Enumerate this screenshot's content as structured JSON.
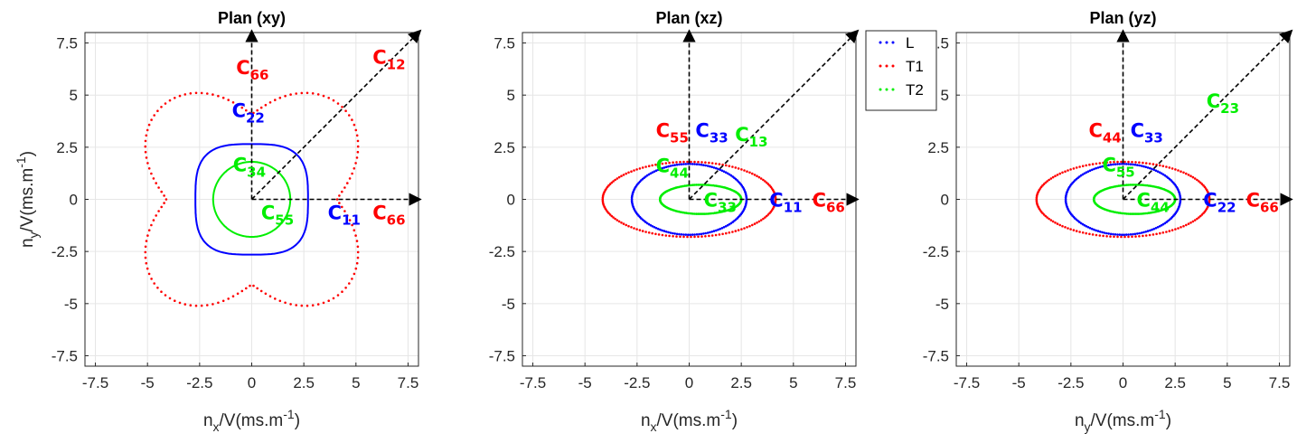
{
  "chart_data": [
    {
      "type": "scatter",
      "title": "Plan (xy)",
      "xlabel": {
        "base": "n",
        "sub": "x",
        "rest": "/V(ms.m",
        "sup": "-1",
        "end": ")"
      },
      "ylabel": {
        "base": "n",
        "sub": "y",
        "rest": "/V(ms.m",
        "sup": "-1",
        "end": ")"
      },
      "xlim": [
        -8,
        8
      ],
      "ylim": [
        -8,
        8
      ],
      "ticks": [
        -7.5,
        -5,
        -2.5,
        0,
        2.5,
        5,
        7.5
      ],
      "tick_labels": [
        "-7.5",
        "-5",
        "-2.5",
        "0",
        "2.5",
        "5",
        "7.5"
      ],
      "grid": true,
      "series": [
        {
          "name": "L",
          "color": "#0000ff",
          "style": "solid",
          "shape": {
            "kind": "superellipse",
            "a": 2.7,
            "b": 2.65,
            "p": 3.2
          }
        },
        {
          "name": "T1",
          "color": "#ff0000",
          "style": "dotted",
          "shape": {
            "kind": "lobed",
            "r": 5.0,
            "k": 0.95
          }
        },
        {
          "name": "T2",
          "color": "#00ee00",
          "style": "solid",
          "shape": {
            "kind": "ellipse",
            "a": 1.85,
            "b": 1.8,
            "cx": 0,
            "cy": 0
          }
        }
      ],
      "arrows": [
        {
          "from": [
            0,
            0
          ],
          "to": [
            8.1,
            0
          ]
        },
        {
          "from": [
            0,
            0
          ],
          "to": [
            0,
            8.1
          ]
        },
        {
          "from": [
            0,
            0
          ],
          "to": [
            8.1,
            8.1
          ]
        }
      ],
      "annotations": [
        {
          "main": "C",
          "sub": "66",
          "color": "#ff0000",
          "x": -0.75,
          "y": 6.0
        },
        {
          "main": "C",
          "sub": "12",
          "color": "#ff0000",
          "x": 5.8,
          "y": 6.5
        },
        {
          "main": "C",
          "sub": "22",
          "color": "#0000ff",
          "x": -0.95,
          "y": 3.95
        },
        {
          "main": "C",
          "sub": "34",
          "color": "#00ee00",
          "x": -0.9,
          "y": 1.35
        },
        {
          "main": "C",
          "sub": "55",
          "color": "#00ee00",
          "x": 0.45,
          "y": -0.95
        },
        {
          "main": "C",
          "sub": "11",
          "color": "#0000ff",
          "x": 3.65,
          "y": -0.95
        },
        {
          "main": "C",
          "sub": "66",
          "color": "#ff0000",
          "x": 5.8,
          "y": -0.95
        }
      ]
    },
    {
      "type": "scatter",
      "title": "Plan (xz)",
      "xlabel": {
        "base": "n",
        "sub": "x",
        "rest": "/V(ms.m",
        "sup": "-1",
        "end": ")"
      },
      "xlim": [
        -8,
        8
      ],
      "ylim": [
        -8,
        8
      ],
      "ticks": [
        -7.5,
        -5,
        -2.5,
        0,
        2.5,
        5,
        7.5
      ],
      "tick_labels": [
        "-7.5",
        "-5",
        "-2.5",
        "0",
        "2.5",
        "5",
        "7.5"
      ],
      "grid": true,
      "series": [
        {
          "name": "L",
          "color": "#0000ff",
          "style": "dotted",
          "shape": {
            "kind": "pinched",
            "a": 2.75,
            "b": 1.7
          }
        },
        {
          "name": "T1",
          "color": "#ff0000",
          "style": "dotted",
          "shape": {
            "kind": "ellipse",
            "a": 4.15,
            "b": 1.8,
            "cx": 0,
            "cy": 0
          }
        },
        {
          "name": "T2",
          "color": "#00ee00",
          "style": "dotted",
          "shape": {
            "kind": "ellipse",
            "a": 1.95,
            "b": 0.7,
            "cx": 0.55,
            "cy": 0
          }
        }
      ],
      "arrows": [
        {
          "from": [
            0,
            0
          ],
          "to": [
            8.1,
            0
          ]
        },
        {
          "from": [
            0,
            0
          ],
          "to": [
            0,
            8.1
          ]
        },
        {
          "from": [
            0,
            0
          ],
          "to": [
            8.1,
            8.1
          ]
        }
      ],
      "annotations": [
        {
          "main": "C",
          "sub": "55",
          "color": "#ff0000",
          "x": -1.6,
          "y": 3.0
        },
        {
          "main": "C",
          "sub": "33",
          "color": "#0000ff",
          "x": 0.3,
          "y": 3.0
        },
        {
          "main": "C",
          "sub": "13",
          "color": "#00ee00",
          "x": 2.2,
          "y": 2.8
        },
        {
          "main": "C",
          "sub": "44",
          "color": "#00ee00",
          "x": -1.6,
          "y": 1.3
        },
        {
          "main": "C",
          "sub": "33",
          "color": "#00ee00",
          "x": 0.7,
          "y": -0.35
        },
        {
          "main": "C",
          "sub": "11",
          "color": "#0000ff",
          "x": 3.85,
          "y": -0.35
        },
        {
          "main": "C",
          "sub": "66",
          "color": "#ff0000",
          "x": 5.9,
          "y": -0.35
        }
      ]
    },
    {
      "type": "scatter",
      "title": "Plan (yz)",
      "xlabel": {
        "base": "n",
        "sub": "y",
        "rest": "/V(ms.m",
        "sup": "-1",
        "end": ")"
      },
      "xlim": [
        -8,
        8
      ],
      "ylim": [
        -8,
        8
      ],
      "ticks": [
        -7.5,
        -5,
        -2.5,
        0,
        2.5,
        5,
        7.5
      ],
      "tick_labels": [
        "-7.5",
        "-5",
        "-2.5",
        "0",
        "2.5",
        "5",
        "7.5"
      ],
      "grid": true,
      "series": [
        {
          "name": "L",
          "color": "#0000ff",
          "style": "dotted",
          "shape": {
            "kind": "pinched",
            "a": 2.75,
            "b": 1.7
          }
        },
        {
          "name": "T1",
          "color": "#ff0000",
          "style": "dotted",
          "shape": {
            "kind": "ellipse",
            "a": 4.15,
            "b": 1.8,
            "cx": 0,
            "cy": 0
          }
        },
        {
          "name": "T2",
          "color": "#00ee00",
          "style": "dotted",
          "shape": {
            "kind": "ellipse",
            "a": 1.95,
            "b": 0.7,
            "cx": 0.55,
            "cy": 0
          }
        }
      ],
      "arrows": [
        {
          "from": [
            0,
            0
          ],
          "to": [
            8.1,
            0
          ]
        },
        {
          "from": [
            0,
            0
          ],
          "to": [
            0,
            8.1
          ]
        },
        {
          "from": [
            0,
            0
          ],
          "to": [
            8.1,
            8.1
          ]
        }
      ],
      "annotations": [
        {
          "main": "C",
          "sub": "44",
          "color": "#ff0000",
          "x": -1.65,
          "y": 3.0
        },
        {
          "main": "C",
          "sub": "33",
          "color": "#0000ff",
          "x": 0.35,
          "y": 3.0
        },
        {
          "main": "C",
          "sub": "23",
          "color": "#00ee00",
          "x": 4.0,
          "y": 4.4
        },
        {
          "main": "C",
          "sub": "55",
          "color": "#00ee00",
          "x": -1.0,
          "y": 1.35
        },
        {
          "main": "C",
          "sub": "44",
          "color": "#00ee00",
          "x": 0.65,
          "y": -0.35
        },
        {
          "main": "C",
          "sub": "22",
          "color": "#0000ff",
          "x": 3.85,
          "y": -0.35
        },
        {
          "main": "C",
          "sub": "66",
          "color": "#ff0000",
          "x": 5.9,
          "y": -0.35
        }
      ]
    }
  ],
  "legend": {
    "placement": "top-right of middle panel",
    "entries": [
      {
        "label": "L",
        "color": "#0000ff"
      },
      {
        "label": "T1",
        "color": "#ff0000"
      },
      {
        "label": "T2",
        "color": "#00ee00"
      }
    ]
  }
}
